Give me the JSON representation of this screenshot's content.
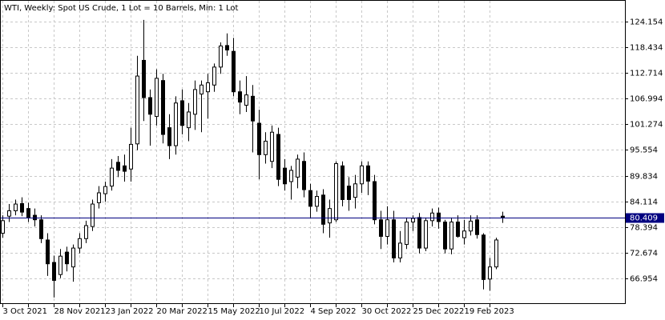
{
  "chart_data": {
    "type": "candlestick",
    "title": "WTI, Weekly:  Spot US Crude, 1 Lot = 10 Barrels, Min: 1 Lot",
    "categories": [
      "3 Oct 2021",
      null,
      null,
      null,
      null,
      null,
      null,
      null,
      "28 Nov 2021",
      null,
      null,
      null,
      null,
      null,
      null,
      null,
      "23 Jan 2022",
      null,
      null,
      null,
      null,
      null,
      null,
      null,
      "20 Mar 2022",
      null,
      null,
      null,
      null,
      null,
      null,
      null,
      "15 May 2022",
      null,
      null,
      null,
      null,
      null,
      null,
      null,
      "10 Jul 2022",
      null,
      null,
      null,
      null,
      null,
      null,
      null,
      "4 Sep 2022",
      null,
      null,
      null,
      null,
      null,
      null,
      null,
      "30 Oct 2022",
      null,
      null,
      null,
      null,
      null,
      null,
      null,
      "25 Dec 2022",
      null,
      null,
      null,
      null,
      null,
      null,
      null,
      "19 Feb 2023",
      null,
      null,
      null,
      null,
      null,
      null
    ],
    "open": [
      77.0,
      80.8,
      82.0,
      83.6,
      82.5,
      81.0,
      80.0,
      75.5,
      70.5,
      67.8,
      72.8,
      69.5,
      73.7,
      75.8,
      78.5,
      83.8,
      85.8,
      87.5,
      92.8,
      92.0,
      91.3,
      96.9,
      115.5,
      107.2,
      103.0,
      111.0,
      100.5,
      96.5,
      106.5,
      100.5,
      103.5,
      108.0,
      108.5,
      110.0,
      114.0,
      118.8,
      117.5,
      108.5,
      105.5,
      107.5,
      101.5,
      94.5,
      93.0,
      99.0,
      91.5,
      88.5,
      89.5,
      93.0,
      86.5,
      83.0,
      85.5,
      79.3,
      80.0,
      92.0,
      87.5,
      85.0,
      88.0,
      92.0,
      88.5,
      80.0,
      76.3,
      80.0,
      71.5,
      74.5,
      79.5,
      80.5,
      73.7,
      79.8,
      81.5,
      79.5,
      73.5,
      79.5,
      76.0,
      77.5,
      80.0,
      76.6,
      66.8,
      69.5,
      80.8
    ],
    "high": [
      81.0,
      83.5,
      84.5,
      85.0,
      83.8,
      82.5,
      81.0,
      77.0,
      72.0,
      73.5,
      74.0,
      74.5,
      77.0,
      79.8,
      84.5,
      87.5,
      88.5,
      93.5,
      94.2,
      94.5,
      100.5,
      116.5,
      124.5,
      109.0,
      113.5,
      112.5,
      103.5,
      107.5,
      109.0,
      106.0,
      111.0,
      111.0,
      112.5,
      114.8,
      119.5,
      121.5,
      120.5,
      111.0,
      112.0,
      110.0,
      104.5,
      99.5,
      101.0,
      100.5,
      93.5,
      92.0,
      94.5,
      95.0,
      88.0,
      86.5,
      86.8,
      84.5,
      93.0,
      93.0,
      89.5,
      90.0,
      93.0,
      93.0,
      90.0,
      82.0,
      83.0,
      82.0,
      77.5,
      80.5,
      81.0,
      81.5,
      80.5,
      82.5,
      82.7,
      80.0,
      80.5,
      81.0,
      80.0,
      81.0,
      81.0,
      77.0,
      71.5,
      76.0,
      81.8
    ],
    "low": [
      76.0,
      79.5,
      81.0,
      80.8,
      79.5,
      78.5,
      74.8,
      67.5,
      62.7,
      67.0,
      68.5,
      66.2,
      72.5,
      74.8,
      77.5,
      82.5,
      84.0,
      86.5,
      89.5,
      88.5,
      88.5,
      95.5,
      102.0,
      96.5,
      101.0,
      97.0,
      93.5,
      94.5,
      99.0,
      97.5,
      100.0,
      99.5,
      102.5,
      108.5,
      112.5,
      116.5,
      107.5,
      103.5,
      104.0,
      95.0,
      89.0,
      92.5,
      91.5,
      87.5,
      86.5,
      84.5,
      87.0,
      85.0,
      80.5,
      81.8,
      77.0,
      76.0,
      79.5,
      83.0,
      82.0,
      82.5,
      86.0,
      85.5,
      79.0,
      73.5,
      74.5,
      70.5,
      70.5,
      73.5,
      77.5,
      72.5,
      73.0,
      78.5,
      78.0,
      72.5,
      72.3,
      76.0,
      74.5,
      76.5,
      75.8,
      64.5,
      64.2,
      69.0,
      79.3
    ],
    "close": [
      79.8,
      82.0,
      83.5,
      81.7,
      80.5,
      80.0,
      75.8,
      70.2,
      66.5,
      71.9,
      70.2,
      73.7,
      75.8,
      78.7,
      83.5,
      86.0,
      87.4,
      91.5,
      91.0,
      90.8,
      96.8,
      112.0,
      107.2,
      103.5,
      111.5,
      99.0,
      96.5,
      106.0,
      101.0,
      104.0,
      109.0,
      110.0,
      110.5,
      114.0,
      118.7,
      117.8,
      108.5,
      106.2,
      107.8,
      102.0,
      94.5,
      97.5,
      99.5,
      89.0,
      88.0,
      91.0,
      93.5,
      86.7,
      83.0,
      85.2,
      79.0,
      82.5,
      92.5,
      84.5,
      84.5,
      88.0,
      92.0,
      88.6,
      80.0,
      76.3,
      80.0,
      71.5,
      74.8,
      79.5,
      80.3,
      73.7,
      79.8,
      81.5,
      79.6,
      73.5,
      79.5,
      76.3,
      77.5,
      79.7,
      76.7,
      66.7,
      69.5,
      75.5,
      80.4
    ],
    "up_color": "#ffffff",
    "down_color": "#000000",
    "outline_color": "#000000",
    "price_line": 80.409,
    "price_line_color": "#000080",
    "ylim": [
      61.6,
      128.4
    ],
    "yticks": [
      66.954,
      72.674,
      78.394,
      84.114,
      89.834,
      95.554,
      101.274,
      106.994,
      112.714,
      118.434,
      124.154
    ],
    "grid": true
  }
}
